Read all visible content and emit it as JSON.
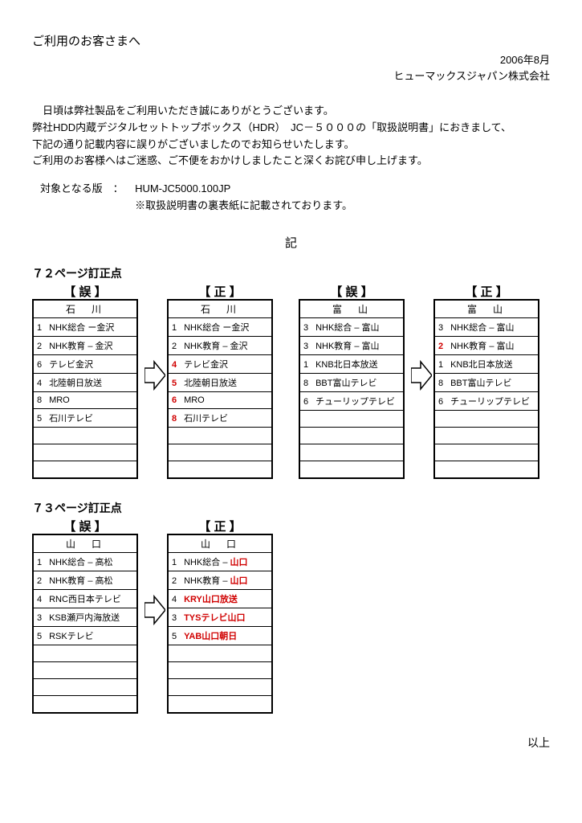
{
  "header": {
    "title": "ご利用のお客さまへ",
    "date": "2006年8月",
    "company": "ヒューマックスジャパン株式会社"
  },
  "intro": {
    "l1": "　日頃は弊社製品をご利用いただき誠にありがとうございます。",
    "l2": "弊社HDD内蔵デジタルセットトップボックス（HDR）　JC－５０００の「取扱説明書」におきまして、",
    "l3": "下記の通り記載内容に誤りがございましたのでお知らせいたします。",
    "l4": "ご利用のお客様へはご迷惑、ご不便をおかけしましたこと深くお詫び申し上げます。"
  },
  "target": {
    "label": "対象となる版　：",
    "value": "HUM-JC5000.100JP",
    "note": "※取扱説明書の裏表紙に記載されております。"
  },
  "ki": "記",
  "labels": {
    "err": "【 誤 】",
    "cor": "【 正 】"
  },
  "sections": [
    {
      "title": "７２ページ訂正点",
      "pairs": [
        {
          "err": {
            "region": "石　川",
            "rows": [
              {
                "num": "1",
                "text": "NHK総合 ー金沢"
              },
              {
                "num": "2",
                "text": "NHK教育 – 金沢"
              },
              {
                "num": "6",
                "text": "テレビ金沢"
              },
              {
                "num": "4",
                "text": "北陸朝日放送"
              },
              {
                "num": "8",
                "text": "MRO"
              },
              {
                "num": "5",
                "text": "石川テレビ"
              }
            ],
            "blank": 3
          },
          "cor": {
            "region": "石　川",
            "rows": [
              {
                "num": "1",
                "text": "NHK総合 ー金沢"
              },
              {
                "num": "2",
                "text": "NHK教育 – 金沢"
              },
              {
                "num": "4",
                "num_red": true,
                "text": "テレビ金沢"
              },
              {
                "num": "5",
                "num_red": true,
                "text": "北陸朝日放送"
              },
              {
                "num": "6",
                "num_red": true,
                "text": "MRO"
              },
              {
                "num": "8",
                "num_red": true,
                "text": "石川テレビ"
              }
            ],
            "blank": 3
          }
        },
        {
          "err": {
            "region": "富　山",
            "rows": [
              {
                "num": "3",
                "text": "NHK総合 – 富山"
              },
              {
                "num": "3",
                "text": "NHK教育 – 富山"
              },
              {
                "num": "1",
                "text": "KNB北日本放送"
              },
              {
                "num": "8",
                "text": "BBT富山テレビ"
              },
              {
                "num": "6",
                "text": "チューリップテレビ"
              }
            ],
            "blank": 4
          },
          "cor": {
            "region": "富　山",
            "rows": [
              {
                "num": "3",
                "text": "NHK総合 – 富山"
              },
              {
                "num": "2",
                "num_red": true,
                "text": "NHK教育 – 富山"
              },
              {
                "num": "1",
                "text": "KNB北日本放送"
              },
              {
                "num": "8",
                "text": "BBT富山テレビ"
              },
              {
                "num": "6",
                "text": "チューリップテレビ"
              }
            ],
            "blank": 4
          }
        }
      ]
    },
    {
      "title": "７３ページ訂正点",
      "pairs": [
        {
          "err": {
            "region": "山　口",
            "rows": [
              {
                "num": "1",
                "text": "NHK総合 – 高松"
              },
              {
                "num": "2",
                "text": "NHK教育 – 高松"
              },
              {
                "num": "4",
                "text": "RNC西日本テレビ"
              },
              {
                "num": "3",
                "text": "KSB瀬戸内海放送"
              },
              {
                "num": "5",
                "text": "RSKテレビ"
              }
            ],
            "blank": 4
          },
          "cor": {
            "region": "山　口",
            "rows": [
              {
                "num": "1",
                "text": "NHK総合 – ",
                "tail": "山口",
                "tail_red": true
              },
              {
                "num": "2",
                "text": "NHK教育 – ",
                "tail": "山口",
                "tail_red": true
              },
              {
                "num": "4",
                "text": "KRY山口放送",
                "text_red": true
              },
              {
                "num": "3",
                "text": "TYSテレビ山口",
                "text_red": true
              },
              {
                "num": "5",
                "text": "YAB山口朝日",
                "text_red": true
              }
            ],
            "blank": 4
          }
        }
      ]
    }
  ],
  "footer": "以上"
}
